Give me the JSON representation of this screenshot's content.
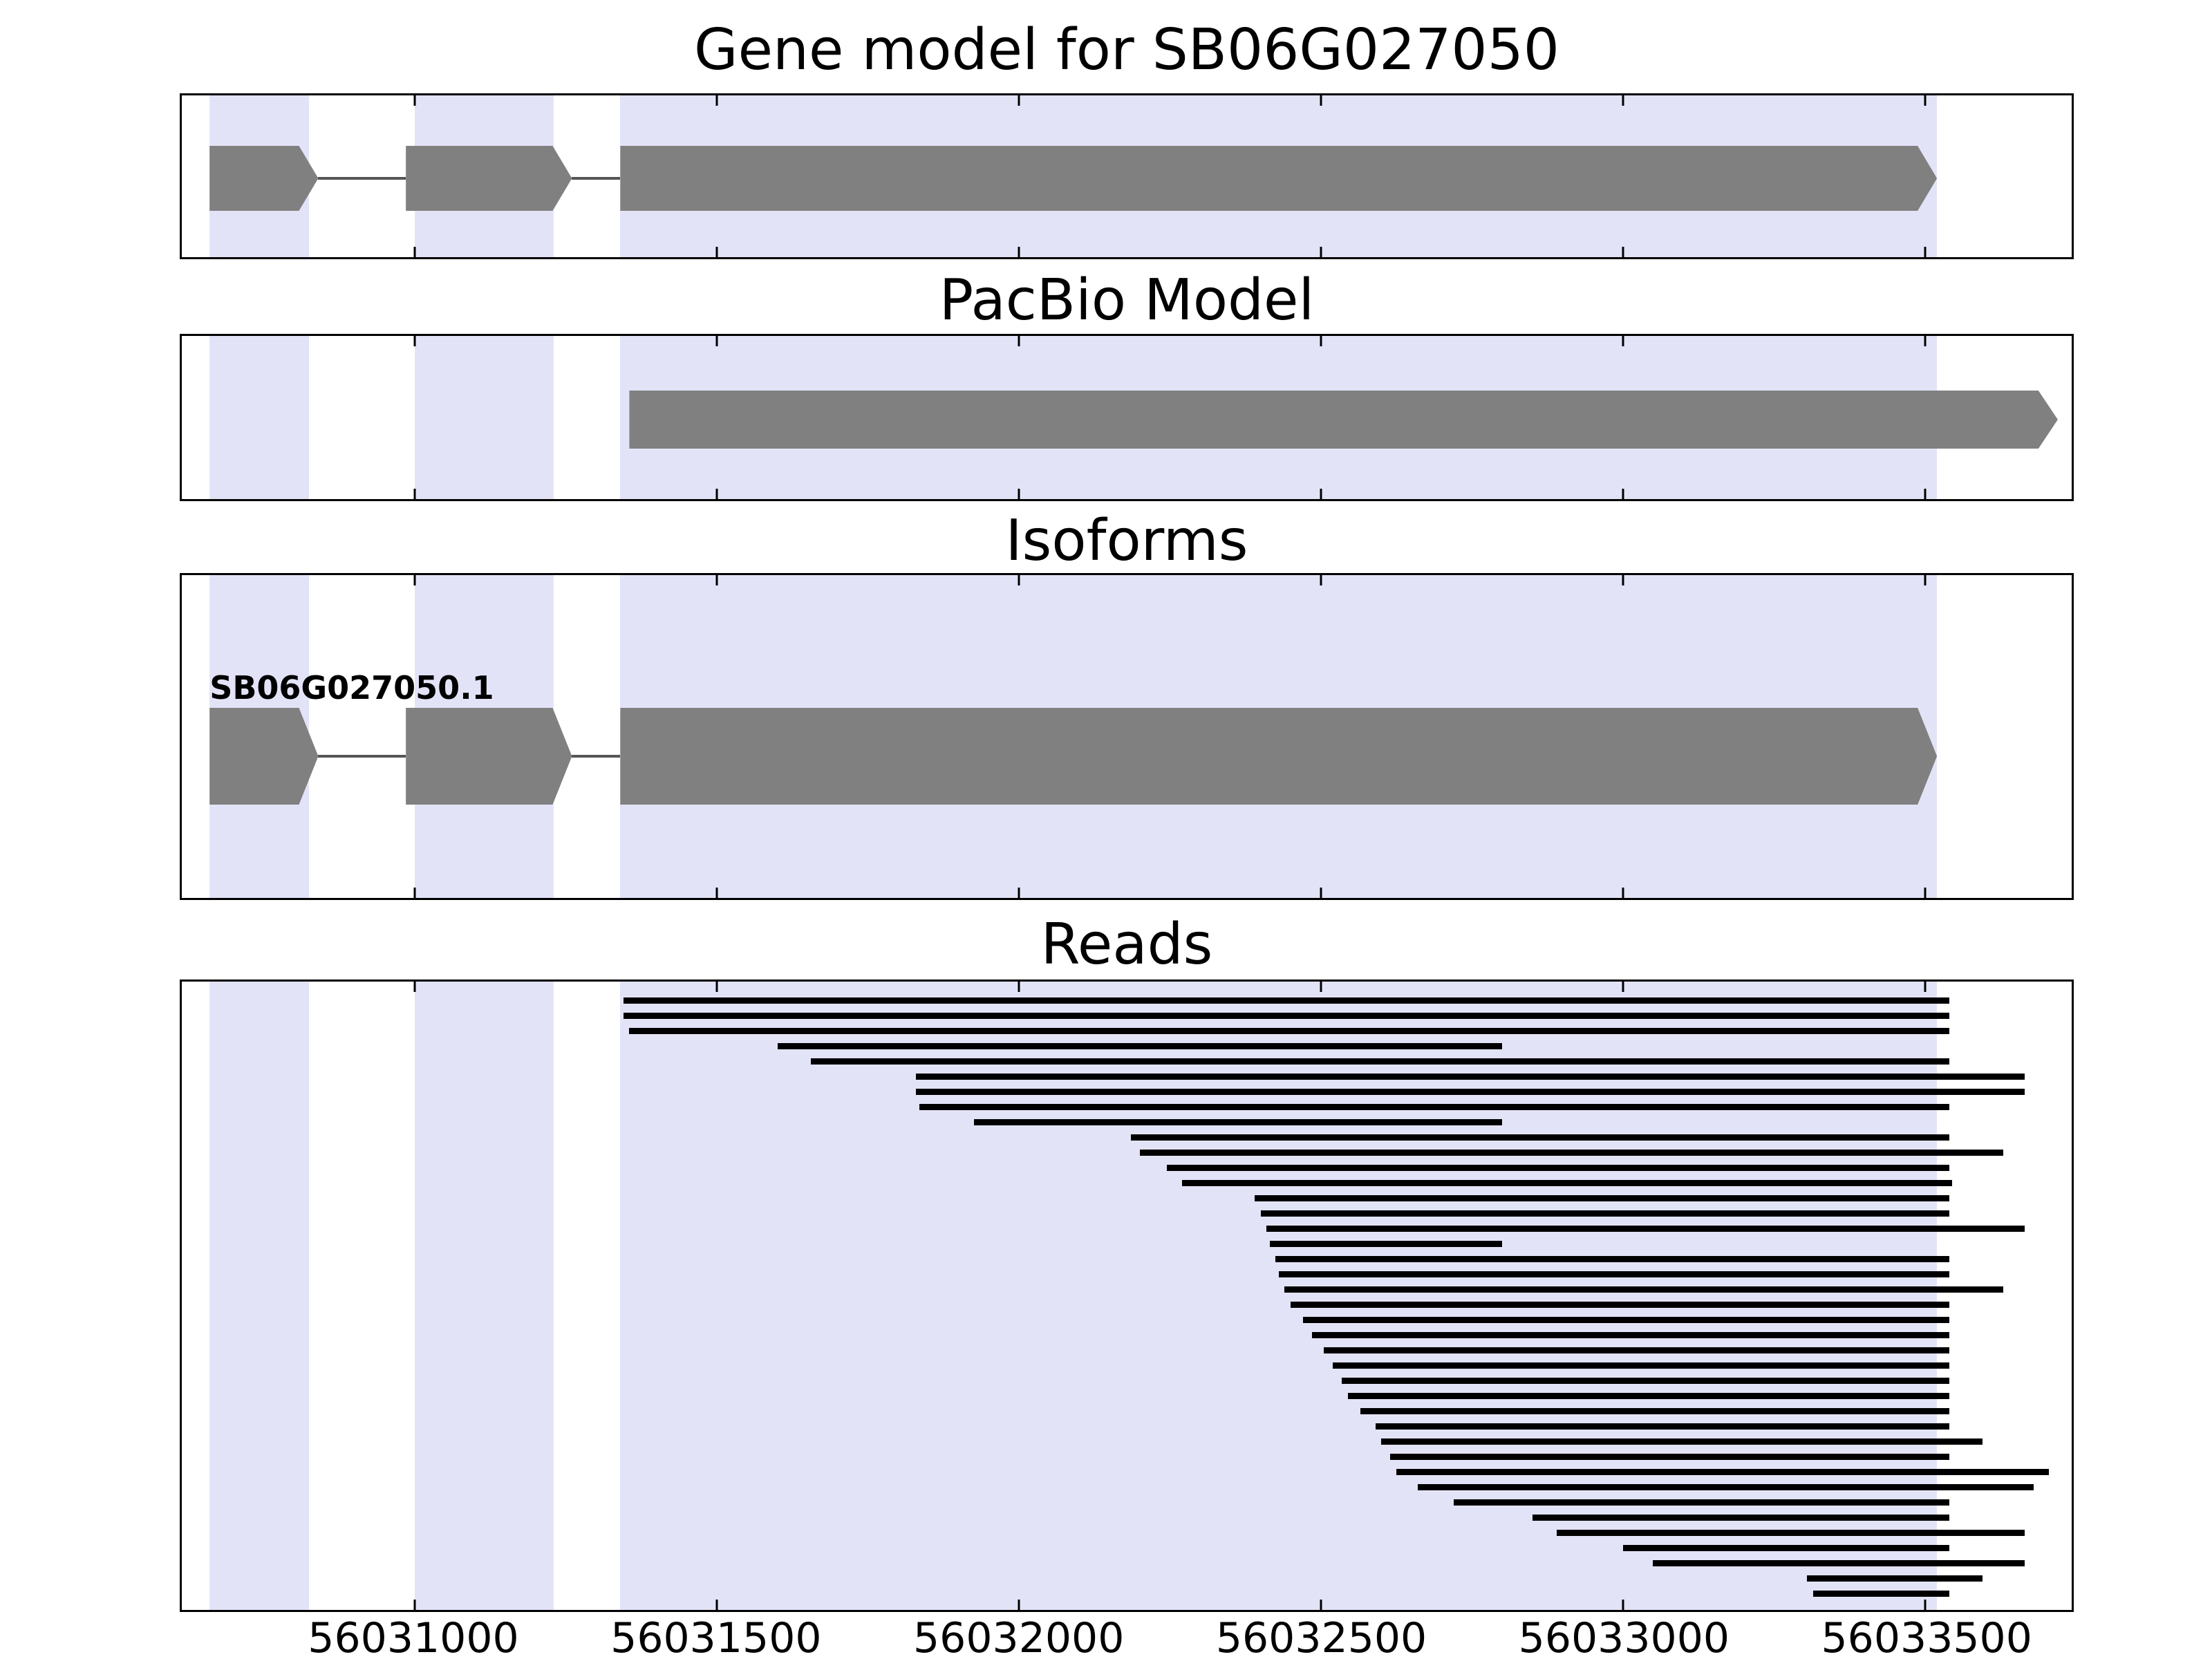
{
  "chart_data": {
    "type": "gene-model-tracks",
    "x_axis": {
      "min": 56030614,
      "max": 56033743,
      "ticks": [
        56031000,
        56031500,
        56032000,
        56032500,
        56033000,
        56033500
      ],
      "tick_labels": [
        "56031000",
        "56031500",
        "56032000",
        "56032500",
        "56033000",
        "56033500"
      ]
    },
    "colors": {
      "exon": "#808080",
      "highlight_band": "#e3e3f8",
      "connector": "#555555",
      "read": "#000000"
    },
    "highlight_bands": [
      [
        56030660,
        56030825
      ],
      [
        56031000,
        56031230
      ],
      [
        56031340,
        56033520
      ]
    ],
    "panels": [
      {
        "id": "gene",
        "title": "Gene model for SB06G027050",
        "type": "transcripts",
        "transcripts": [
          {
            "label": "",
            "strand": "+",
            "exons": [
              [
                56030660,
                56030840
              ],
              [
                56030985,
                56031260
              ],
              [
                56031340,
                56033520
              ]
            ]
          }
        ]
      },
      {
        "id": "pacbio",
        "title": "PacBio Model",
        "type": "transcripts",
        "transcripts": [
          {
            "label": "",
            "strand": "+",
            "exons": [
              [
                56031355,
                56033720
              ]
            ]
          }
        ]
      },
      {
        "id": "isoforms",
        "title": "Isoforms",
        "type": "transcripts",
        "transcripts": [
          {
            "label": "SB06G027050.1",
            "strand": "+",
            "exons": [
              [
                56030660,
                56030840
              ],
              [
                56030985,
                56031260
              ],
              [
                56031340,
                56033520
              ]
            ]
          }
        ]
      },
      {
        "id": "reads",
        "title": "Reads",
        "type": "reads",
        "reads": [
          [
            56031345,
            56033540
          ],
          [
            56031345,
            56033540
          ],
          [
            56031355,
            56033540
          ],
          [
            56031600,
            56032800
          ],
          [
            56031655,
            56033540
          ],
          [
            56031830,
            56033665
          ],
          [
            56031830,
            56033665
          ],
          [
            56031835,
            56033540
          ],
          [
            56031925,
            56032800
          ],
          [
            56032185,
            56033540
          ],
          [
            56032200,
            56033630
          ],
          [
            56032245,
            56033540
          ],
          [
            56032270,
            56033545
          ],
          [
            56032390,
            56033540
          ],
          [
            56032400,
            56033540
          ],
          [
            56032410,
            56033665
          ],
          [
            56032415,
            56032800
          ],
          [
            56032425,
            56033540
          ],
          [
            56032430,
            56033540
          ],
          [
            56032440,
            56033630
          ],
          [
            56032450,
            56033540
          ],
          [
            56032470,
            56033540
          ],
          [
            56032485,
            56033540
          ],
          [
            56032505,
            56033540
          ],
          [
            56032520,
            56033540
          ],
          [
            56032535,
            56033540
          ],
          [
            56032545,
            56033540
          ],
          [
            56032565,
            56033540
          ],
          [
            56032590,
            56033540
          ],
          [
            56032600,
            56033595
          ],
          [
            56032615,
            56033540
          ],
          [
            56032625,
            56033705
          ],
          [
            56032660,
            56033680
          ],
          [
            56032720,
            56033540
          ],
          [
            56032850,
            56033540
          ],
          [
            56032890,
            56033665
          ],
          [
            56033000,
            56033540
          ],
          [
            56033050,
            56033665
          ],
          [
            56033305,
            56033595
          ],
          [
            56033315,
            56033540
          ]
        ]
      }
    ]
  }
}
